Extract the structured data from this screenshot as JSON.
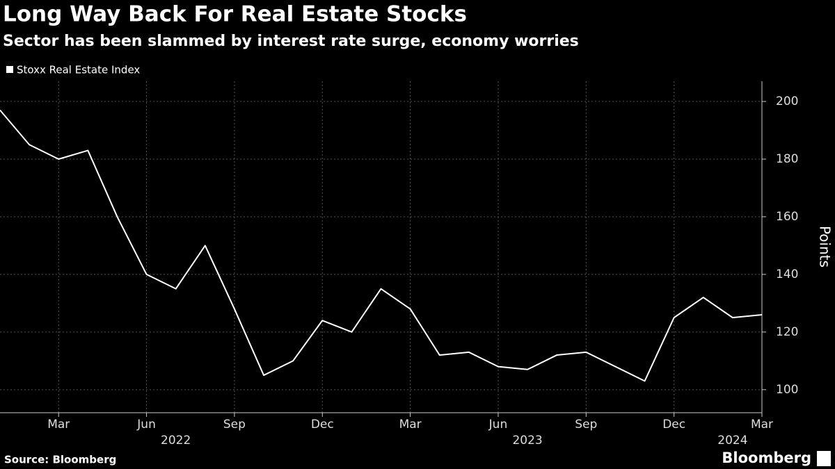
{
  "chart_data": {
    "type": "line",
    "title": "Long Way Back For Real Estate Stocks",
    "subtitle": "Sector has been slammed by interest rate surge, economy worries",
    "y_label": "Points",
    "source": "Source: Bloomberg",
    "brand": "Bloomberg",
    "x": [
      "2022-01",
      "2022-02",
      "2022-03",
      "2022-04",
      "2022-05",
      "2022-06",
      "2022-07",
      "2022-08",
      "2022-09",
      "2022-10",
      "2022-11",
      "2022-12",
      "2023-01",
      "2023-02",
      "2023-03",
      "2023-04",
      "2023-05",
      "2023-06",
      "2023-07",
      "2023-08",
      "2023-09",
      "2023-10",
      "2023-11",
      "2023-12",
      "2024-01",
      "2024-02",
      "2024-03"
    ],
    "series": [
      {
        "name": "Stoxx Real Estate Index",
        "color": "#ffffff",
        "values": [
          197,
          185,
          180,
          183,
          160,
          140,
          135,
          150,
          128,
          105,
          110,
          124,
          120,
          135,
          128,
          112,
          113,
          108,
          107,
          112,
          113,
          108,
          103,
          125,
          132,
          125,
          126
        ]
      }
    ],
    "xlim": [
      "2022-01",
      "2024-03"
    ],
    "xticks": [
      {
        "value": "2022-03",
        "label": "Mar"
      },
      {
        "value": "2022-06",
        "label": "Jun"
      },
      {
        "value": "2022-09",
        "label": "Sep"
      },
      {
        "value": "2022-12",
        "label": "Dec"
      },
      {
        "value": "2023-03",
        "label": "Mar"
      },
      {
        "value": "2023-06",
        "label": "Jun"
      },
      {
        "value": "2023-09",
        "label": "Sep"
      },
      {
        "value": "2023-12",
        "label": "Dec"
      },
      {
        "value": "2024-03",
        "label": "Mar"
      }
    ],
    "year_labels": [
      {
        "value": "2022-07",
        "label": "2022"
      },
      {
        "value": "2023-07",
        "label": "2023"
      },
      {
        "value": "2024-02",
        "label": "2024"
      }
    ],
    "ylim": [
      92,
      207
    ],
    "yticks": [
      100,
      120,
      140,
      160,
      180,
      200
    ],
    "grid": true
  }
}
